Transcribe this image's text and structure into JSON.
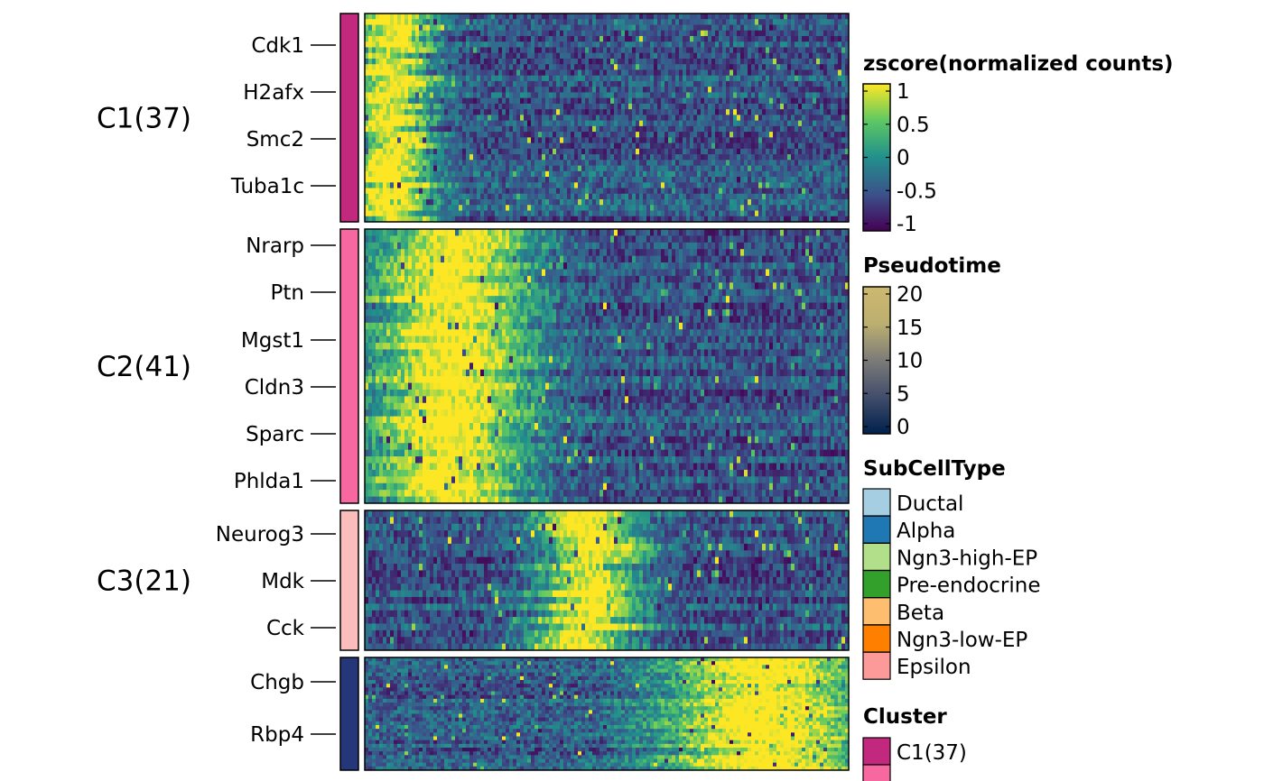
{
  "chart_data": {
    "type": "heatmap",
    "x_axis": "cells ordered by pseudotime (no tick labels shown)",
    "clusters": [
      {
        "label": "C1(37)",
        "n_genes": 37,
        "color": "#C2287E",
        "genes_labeled": [
          "Cdk1",
          "H2afx",
          "Smc2",
          "Tuba1c"
        ],
        "peak_position": 0.05,
        "peak_width": 0.08
      },
      {
        "label": "C2(41)",
        "n_genes": 41,
        "color": "#F768A1",
        "genes_labeled": [
          "Nrarp",
          "Ptn",
          "Mgst1",
          "Cldn3",
          "Sparc",
          "Phlda1"
        ],
        "peak_position": 0.17,
        "peak_width": 0.16
      },
      {
        "label": "C3(21)",
        "n_genes": 21,
        "color": "#FBBCBC",
        "genes_labeled": [
          "Neurog3",
          "Mdk",
          "Cck"
        ],
        "peak_position": 0.46,
        "peak_width": 0.1
      },
      {
        "label": "",
        "n_genes": 30,
        "color": "#253778",
        "genes_labeled": [
          "Chgb",
          "Rbp4"
        ],
        "peak_position": 0.82,
        "peak_width": 0.2
      }
    ],
    "legends": [
      {
        "title": "zscore(normalized counts)",
        "type": "continuous",
        "ticks": [
          "1",
          "0.5",
          "0",
          "-0.5",
          "-1"
        ],
        "range": [
          -1,
          1
        ],
        "colors": [
          "#440154",
          "#3B528B",
          "#21908C",
          "#5DC863",
          "#FDE725"
        ]
      },
      {
        "title": "Pseudotime",
        "type": "continuous",
        "ticks": [
          "20",
          "15",
          "10",
          "5",
          "0"
        ],
        "range": [
          0,
          20
        ],
        "colors": [
          "#00204D",
          "#414D6B",
          "#7C7B78",
          "#BCAF6F",
          "#CDB870"
        ]
      },
      {
        "title": "SubCellType",
        "type": "categorical",
        "items": [
          {
            "label": "Ductal",
            "color": "#A6CEE3"
          },
          {
            "label": "Alpha",
            "color": "#1F78B4"
          },
          {
            "label": "Ngn3-high-EP",
            "color": "#B2DF8A"
          },
          {
            "label": "Pre-endocrine",
            "color": "#33A02C"
          },
          {
            "label": "Beta",
            "color": "#FDBF6F"
          },
          {
            "label": "Ngn3-low-EP",
            "color": "#FF7F00"
          },
          {
            "label": "Epsilon",
            "color": "#FB9A99"
          }
        ]
      },
      {
        "title": "Cluster",
        "type": "categorical",
        "items": [
          {
            "label": "C1(37)",
            "color": "#C2287E"
          }
        ]
      }
    ]
  }
}
